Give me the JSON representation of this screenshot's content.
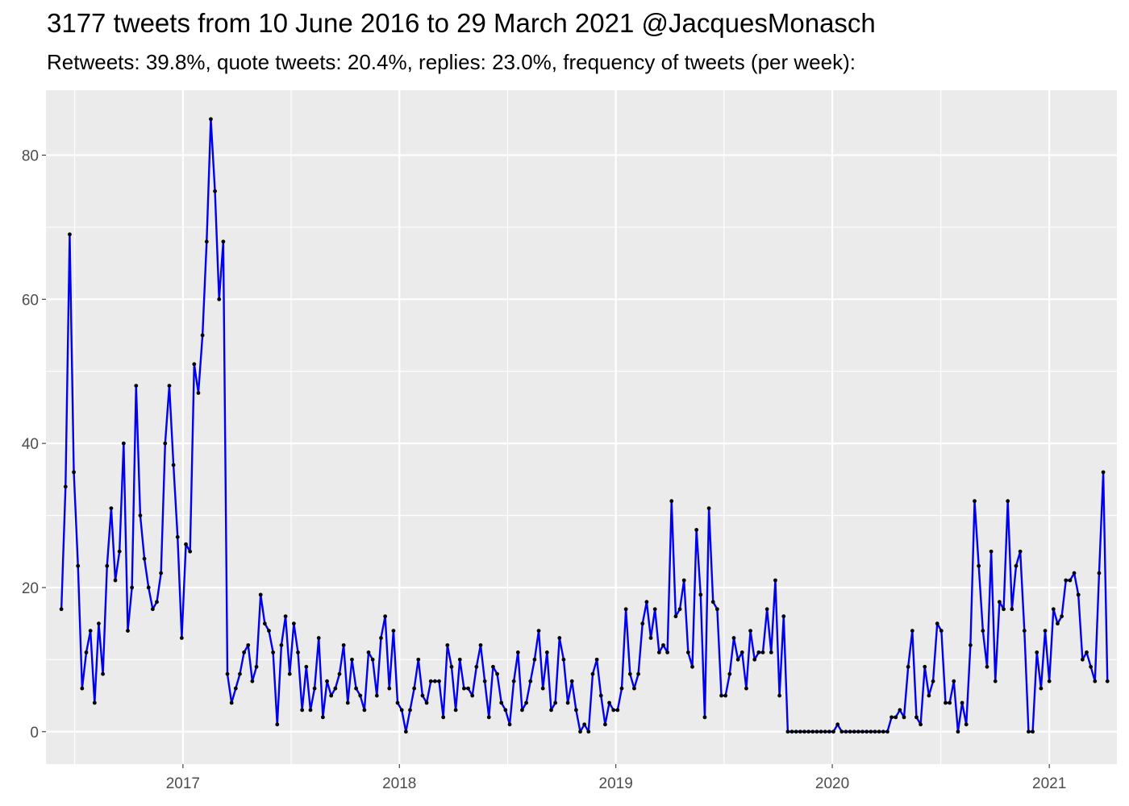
{
  "chart_data": {
    "type": "line",
    "title": "3177 tweets from 10 June 2016 to 29 March 2021 @JacquesMonasch",
    "subtitle": "Retweets: 39.8%, quote tweets: 20.4%, replies: 23.0%, frequency of tweets (per week):",
    "xlabel": "",
    "ylabel": "",
    "x_start": "2016-06-10",
    "x_step_days": 7,
    "xlim": [
      "2016-05-15",
      "2021-04-25"
    ],
    "ylim": [
      -4.5,
      89
    ],
    "x_ticks": [
      {
        "date": "2017-01-01",
        "label": "2017"
      },
      {
        "date": "2018-01-01",
        "label": "2018"
      },
      {
        "date": "2019-01-01",
        "label": "2019"
      },
      {
        "date": "2020-01-01",
        "label": "2020"
      },
      {
        "date": "2021-01-01",
        "label": "2021"
      }
    ],
    "y_ticks": [
      0,
      20,
      40,
      60,
      80
    ],
    "grid": true,
    "line_color": "#0000ee",
    "point_color": "#000000",
    "panel_color": "#ebebeb",
    "series": [
      {
        "values": [
          17,
          34,
          69,
          36,
          23,
          6,
          11,
          14,
          4,
          15,
          8,
          23,
          31,
          21,
          25,
          40,
          14,
          20,
          48,
          30,
          24,
          20,
          17,
          18,
          22,
          40,
          48,
          37,
          27,
          13,
          26,
          25,
          51,
          47,
          55,
          68,
          85,
          75,
          60,
          68,
          8,
          4,
          6,
          8,
          11,
          12,
          7,
          9,
          19,
          15,
          14,
          11,
          1,
          12,
          16,
          8,
          15,
          11,
          3,
          9,
          3,
          6,
          13,
          2,
          7,
          5,
          6,
          8,
          12,
          4,
          10,
          6,
          5,
          3,
          11,
          10,
          5,
          13,
          16,
          6,
          14,
          4,
          3,
          0,
          3,
          6,
          10,
          5,
          4,
          7,
          7,
          7,
          2,
          12,
          9,
          3,
          10,
          6,
          6,
          5,
          9,
          12,
          7,
          2,
          9,
          8,
          4,
          3,
          1,
          7,
          11,
          3,
          4,
          7,
          10,
          14,
          6,
          11,
          3,
          4,
          13,
          10,
          4,
          7,
          3,
          0,
          1,
          0,
          8,
          10,
          5,
          1,
          4,
          3,
          3,
          6,
          17,
          8,
          6,
          8,
          15,
          18,
          13,
          17,
          11,
          12,
          11,
          32,
          16,
          17,
          21,
          11,
          9,
          28,
          19,
          2,
          31,
          18,
          17,
          5,
          5,
          8,
          13,
          10,
          11,
          6,
          14,
          10,
          11,
          11,
          17,
          11,
          21,
          5,
          16,
          0,
          0,
          0,
          0,
          0,
          0,
          0,
          0,
          0,
          0,
          0,
          0,
          1,
          0,
          0,
          0,
          0,
          0,
          0,
          0,
          0,
          0,
          0,
          0,
          0,
          2,
          2,
          3,
          2,
          9,
          14,
          2,
          1,
          9,
          5,
          7,
          15,
          14,
          4,
          4,
          7,
          0,
          4,
          1,
          12,
          32,
          23,
          14,
          9,
          25,
          7,
          18,
          17,
          32,
          17,
          23,
          25,
          14,
          0,
          0,
          11,
          6,
          14,
          7,
          17,
          15,
          16,
          21,
          21,
          22,
          19,
          10,
          11,
          9,
          7,
          22,
          36,
          7
        ]
      }
    ]
  }
}
